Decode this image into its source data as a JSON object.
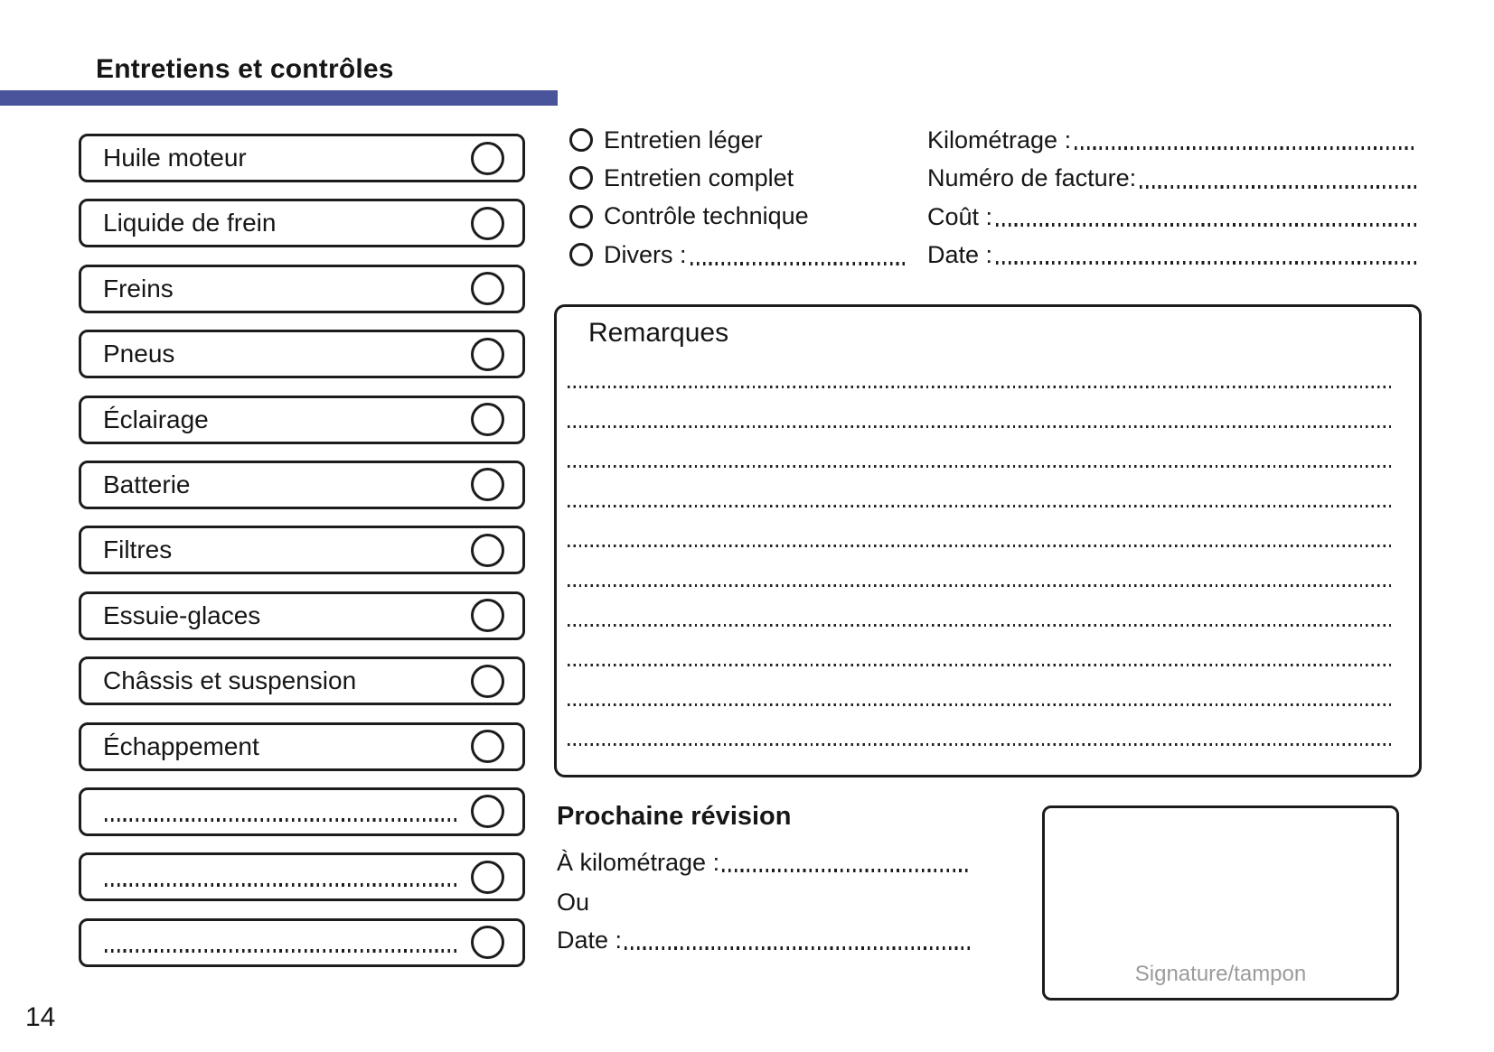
{
  "page": {
    "title": "Entretiens et contrôles",
    "page_number": "14",
    "accent_color": "#4a549b"
  },
  "checklist": {
    "items": [
      {
        "label": "Huile moteur",
        "blank": false
      },
      {
        "label": "Liquide de frein",
        "blank": false
      },
      {
        "label": "Freins",
        "blank": false
      },
      {
        "label": "Pneus",
        "blank": false
      },
      {
        "label": "Éclairage",
        "blank": false
      },
      {
        "label": "Batterie",
        "blank": false
      },
      {
        "label": "Filtres",
        "blank": false
      },
      {
        "label": "Essuie-glaces",
        "blank": false
      },
      {
        "label": "Châssis et suspension",
        "blank": false
      },
      {
        "label": "Échappement",
        "blank": false
      },
      {
        "label": "",
        "blank": true
      },
      {
        "label": "",
        "blank": true
      },
      {
        "label": "",
        "blank": true
      }
    ]
  },
  "service_options": {
    "options": [
      "Entretien léger",
      "Entretien complet",
      "Contrôle technique"
    ],
    "divers_label": "Divers :"
  },
  "invoice_fields": {
    "labels": [
      "Kilométrage :",
      "Numéro de facture:",
      "Coût :",
      "Date :"
    ]
  },
  "remarks": {
    "title": "Remarques",
    "line_count": 10
  },
  "next_service": {
    "title": "Prochaine révision",
    "km_label": "À kilométrage :",
    "or_label": "Ou",
    "date_label": "Date :"
  },
  "signature": {
    "label": "Signature/tampon"
  }
}
